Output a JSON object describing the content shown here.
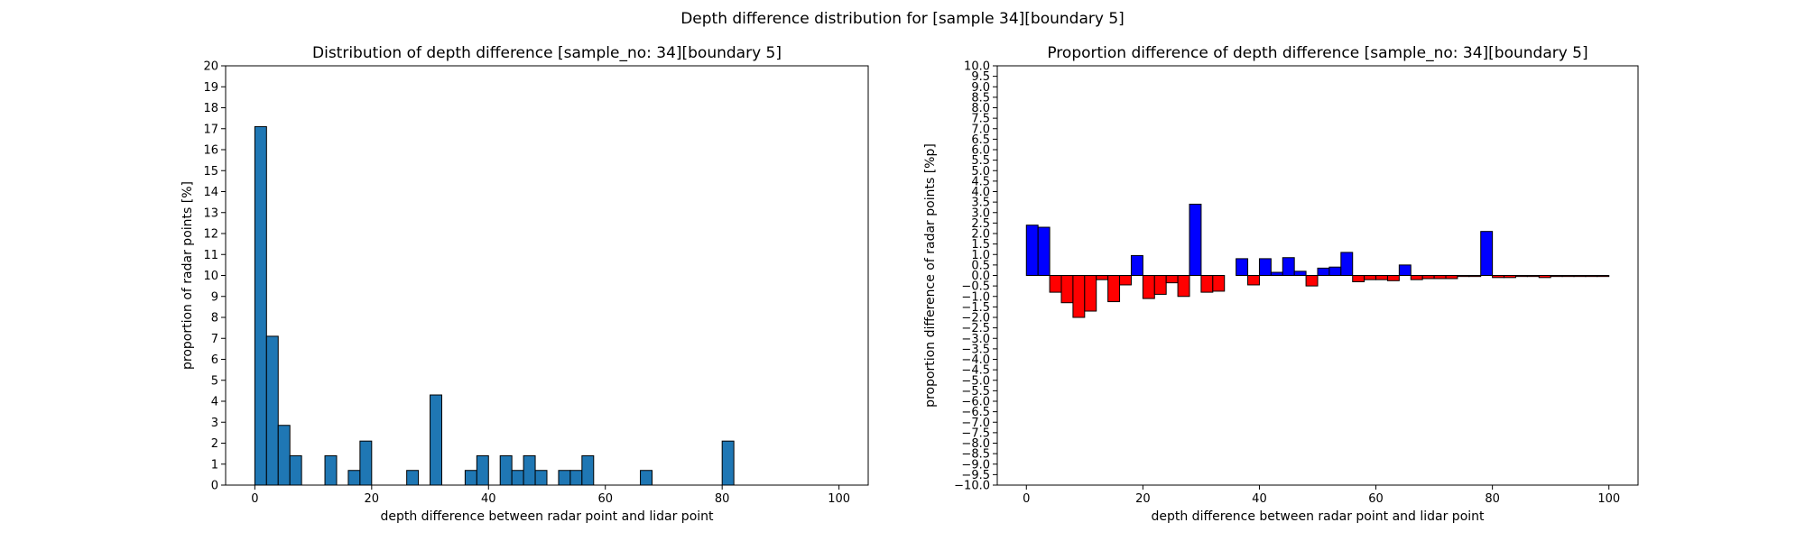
{
  "figure": {
    "suptitle": "Depth difference distribution for [sample 34][boundary 5]"
  },
  "chart_data": [
    {
      "type": "bar",
      "title": "Distribution of depth difference [sample_no: 34][boundary 5]",
      "xlabel": "depth difference between radar point and lidar point",
      "ylabel": "proportion of radar points [%]",
      "xlim": [
        -5,
        105
      ],
      "ylim": [
        0,
        20
      ],
      "xticks": [
        0,
        20,
        40,
        60,
        80,
        100
      ],
      "yticks": [
        0,
        1,
        2,
        3,
        4,
        5,
        6,
        7,
        8,
        9,
        10,
        11,
        12,
        13,
        14,
        15,
        16,
        17,
        18,
        19,
        20
      ],
      "bin_width": 2,
      "bin_starts": [
        0,
        2,
        4,
        6,
        8,
        10,
        12,
        14,
        16,
        18,
        20,
        22,
        24,
        26,
        28,
        30,
        32,
        34,
        36,
        38,
        40,
        42,
        44,
        46,
        48,
        50,
        52,
        54,
        56,
        58,
        60,
        62,
        64,
        66,
        68,
        70,
        72,
        74,
        76,
        78,
        80,
        82,
        84,
        86,
        88,
        90,
        92,
        94,
        96,
        98
      ],
      "values": [
        17.1,
        7.1,
        2.85,
        1.4,
        0,
        0,
        1.4,
        0,
        0.7,
        2.1,
        0,
        0,
        0,
        0.7,
        0,
        4.3,
        0,
        0,
        0.7,
        1.4,
        0,
        1.4,
        0.7,
        1.4,
        0.7,
        0,
        0.7,
        0.7,
        1.4,
        0,
        0,
        0,
        0,
        0.7,
        0,
        0,
        0,
        0,
        0,
        0,
        2.1,
        0,
        0,
        0,
        0,
        0,
        0,
        0,
        0,
        0
      ],
      "bar_color": "#1f77b4",
      "edge_color": "#000000"
    },
    {
      "type": "bar",
      "title": "Proportion difference of depth difference [sample_no: 34][boundary 5]",
      "xlabel": "depth difference between radar point and lidar point",
      "ylabel": "proportion difference of radar points [%p]",
      "xlim": [
        -5,
        105
      ],
      "ylim": [
        -10,
        10
      ],
      "xticks": [
        0,
        20,
        40,
        60,
        80,
        100
      ],
      "yticks": [
        -10,
        -9.5,
        -9,
        -8.5,
        -8,
        -7.5,
        -7,
        -6.5,
        -6,
        -5.5,
        -5,
        -4.5,
        -4,
        -3.5,
        -3,
        -2.5,
        -2,
        -1.5,
        -1,
        -0.5,
        0,
        0.5,
        1,
        1.5,
        2,
        2.5,
        3,
        3.5,
        4,
        4.5,
        5,
        5.5,
        6,
        6.5,
        7,
        7.5,
        8,
        8.5,
        9,
        9.5,
        10
      ],
      "ytick_labels": [
        "−10.0",
        "−9.5",
        "−9.0",
        "−8.5",
        "−8.0",
        "−7.5",
        "−7.0",
        "−6.5",
        "−6.0",
        "−5.5",
        "−5.0",
        "−4.5",
        "−4.0",
        "−3.5",
        "−3.0",
        "−2.5",
        "−2.0",
        "−1.5",
        "−1.0",
        "−0.5",
        "0.0",
        "0.5",
        "1.0",
        "1.5",
        "2.0",
        "2.5",
        "3.0",
        "3.5",
        "4.0",
        "4.5",
        "5.0",
        "5.5",
        "6.0",
        "6.5",
        "7.0",
        "7.5",
        "8.0",
        "8.5",
        "9.0",
        "9.5",
        "10.0"
      ],
      "bin_width": 2,
      "bin_starts": [
        0,
        2,
        4,
        6,
        8,
        10,
        12,
        14,
        16,
        18,
        20,
        22,
        24,
        26,
        28,
        30,
        32,
        34,
        36,
        38,
        40,
        42,
        44,
        46,
        48,
        50,
        52,
        54,
        56,
        58,
        60,
        62,
        64,
        66,
        68,
        70,
        72,
        74,
        76,
        78,
        80,
        82,
        84,
        86,
        88,
        90,
        92,
        94,
        96,
        98
      ],
      "values": [
        2.4,
        2.3,
        -0.8,
        -1.3,
        -2.0,
        -1.7,
        -0.2,
        -1.25,
        -0.45,
        0.95,
        -1.1,
        -0.9,
        -0.35,
        -1.0,
        3.4,
        -0.8,
        -0.75,
        0,
        0.8,
        -0.45,
        0.8,
        0.15,
        0.85,
        0.2,
        -0.5,
        0.35,
        0.4,
        1.1,
        -0.3,
        -0.2,
        -0.2,
        -0.25,
        0.5,
        -0.2,
        -0.15,
        -0.15,
        -0.15,
        -0.05,
        -0.05,
        2.1,
        -0.1,
        -0.1,
        -0.05,
        -0.05,
        -0.1,
        -0.05,
        -0.05,
        -0.05,
        -0.05,
        -0.05
      ],
      "positive_color": "#0000ff",
      "negative_color": "#ff0000",
      "edge_color": "#000000"
    }
  ]
}
